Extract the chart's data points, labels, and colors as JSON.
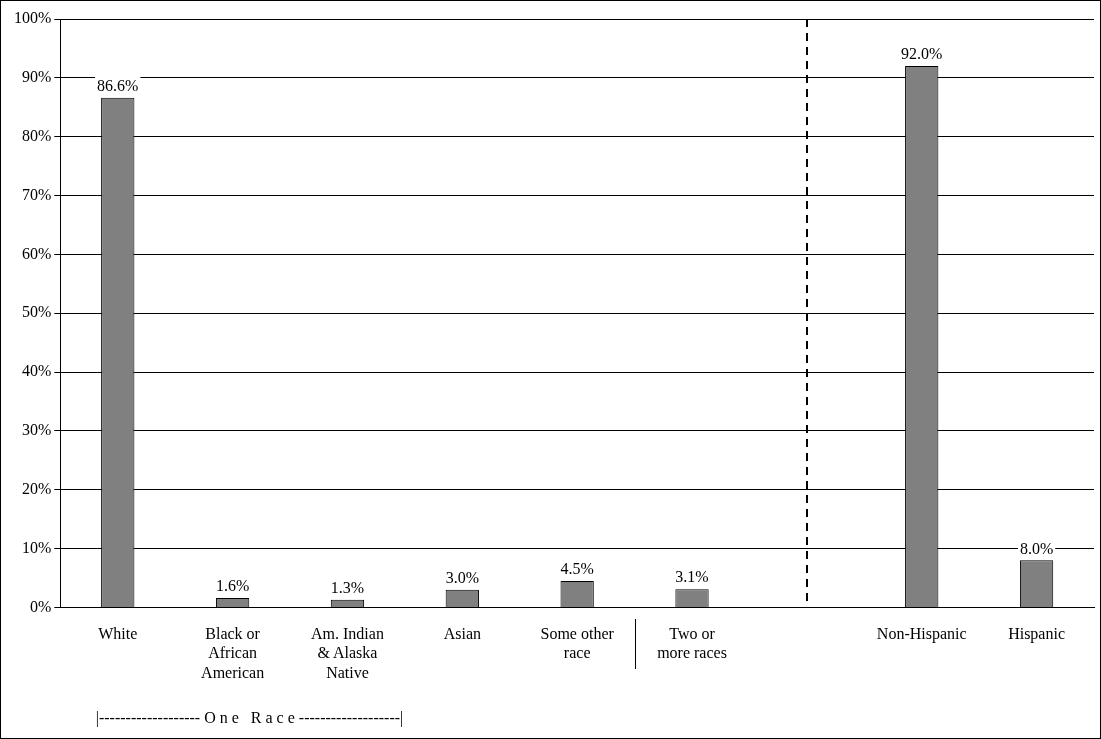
{
  "chart_data": {
    "type": "bar",
    "categories": [
      "White",
      "Black or African American",
      "Am. Indian & Alaska Native",
      "Asian",
      "Some other race",
      "Two or more races",
      null,
      "Non-Hispanic",
      "Hispanic"
    ],
    "values": [
      86.6,
      1.6,
      1.3,
      3.0,
      4.5,
      3.1,
      null,
      92.0,
      8.0
    ],
    "value_labels": [
      "86.6%",
      "1.6%",
      "1.3%",
      "3.0%",
      "4.5%",
      "3.1%",
      null,
      "92.0%",
      "8.0%"
    ],
    "color": "#808080",
    "ylim": [
      0,
      100
    ],
    "yticks": [
      {
        "value": 0,
        "label": "0%"
      },
      {
        "value": 10,
        "label": "10%"
      },
      {
        "value": 20,
        "label": "20%"
      },
      {
        "value": 30,
        "label": "30%"
      },
      {
        "value": 40,
        "label": "40%"
      },
      {
        "value": 50,
        "label": "50%"
      },
      {
        "value": 60,
        "label": "60%"
      },
      {
        "value": 70,
        "label": "70%"
      },
      {
        "value": 80,
        "label": "80%"
      },
      {
        "value": 90,
        "label": "90%"
      },
      {
        "value": 100,
        "label": "100%"
      }
    ],
    "grid": "y",
    "legend": false,
    "annotations": [
      "|------------------- O n e   R a c e -------------------|"
    ]
  }
}
